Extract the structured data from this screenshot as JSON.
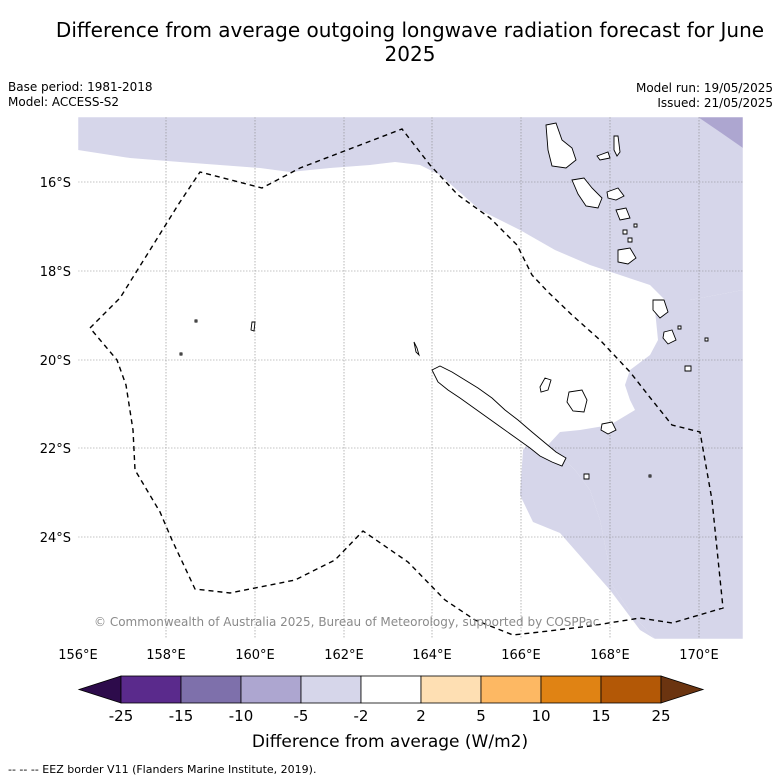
{
  "title": "Difference from average outgoing longwave radiation forecast for June 2025",
  "base_period": "Base period: 1981-2018",
  "model": "Model: ACCESS-S2",
  "model_run": "Model run: 19/05/2025",
  "issued": "Issued: 21/05/2025",
  "lat_labels": [
    "16°S",
    "18°S",
    "20°S",
    "22°S",
    "24°S"
  ],
  "lon_labels": [
    "156°E",
    "158°E",
    "160°E",
    "162°E",
    "164°E",
    "166°E",
    "168°E",
    "170°E"
  ],
  "copyright": "© Commonwealth of Australia 2025, Bureau of Meteorology, supported by COSPPac",
  "colorbar": {
    "title": "Difference from average (W/m2)",
    "tick_labels": [
      "-25",
      "-15",
      "-10",
      "-5",
      "-2",
      "2",
      "5",
      "10",
      "15",
      "25"
    ],
    "colors": [
      "#2d0b4b",
      "#5a2a8c",
      "#7e70ab",
      "#ada6d0",
      "#d6d6ea",
      "#ffffff",
      "#fedfb3",
      "#fdb863",
      "#e08314",
      "#b35806",
      "#6b3410"
    ]
  },
  "legend_footer": "-- -- -- EEZ border V11 (Flanders Marine Institute, 2019).",
  "colors": {
    "light_lavender": "#d6d6ea",
    "lavender": "#ada6d0",
    "grid": "#888888"
  }
}
